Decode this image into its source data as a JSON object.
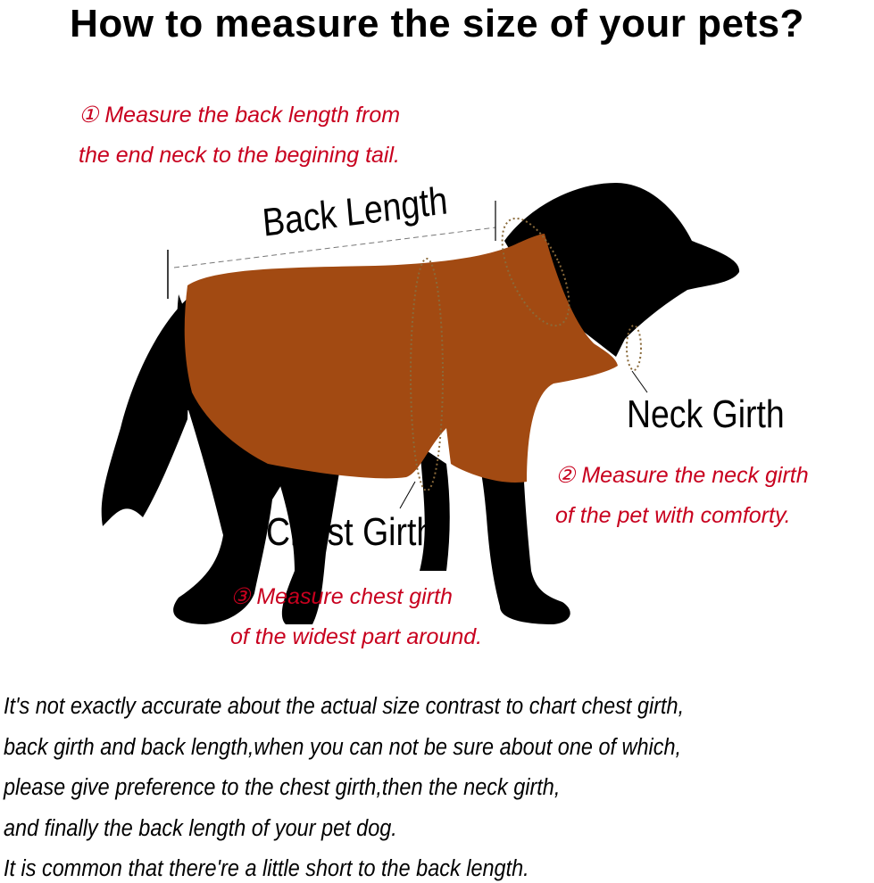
{
  "title": "How to measure the size of your pets?",
  "colors": {
    "instruction_red": "#c8001e",
    "sweater_brown": "#a24a12",
    "dog_black": "#000000"
  },
  "instructions": {
    "back_length": [
      "① Measure the back length from",
      "the end neck to the begining tail."
    ],
    "neck_girth": [
      "② Measure the neck girth",
      "of the pet with comforty."
    ],
    "chest_girth": [
      "③ Measure chest girth",
      "of the widest part around."
    ]
  },
  "labels": {
    "back_length": "Back Length",
    "neck_girth": "Neck Girth",
    "chest_girth": "Chest Girth"
  },
  "notes": [
    "It's not exactly accurate about the actual size contrast to chart chest girth,",
    "back girth and back length,when you can not be sure about one of which,",
    "please give preference to the chest girth,then the neck girth,",
    "and finally the back length of your pet dog.",
    "It is common that there're a little short to the back length."
  ]
}
